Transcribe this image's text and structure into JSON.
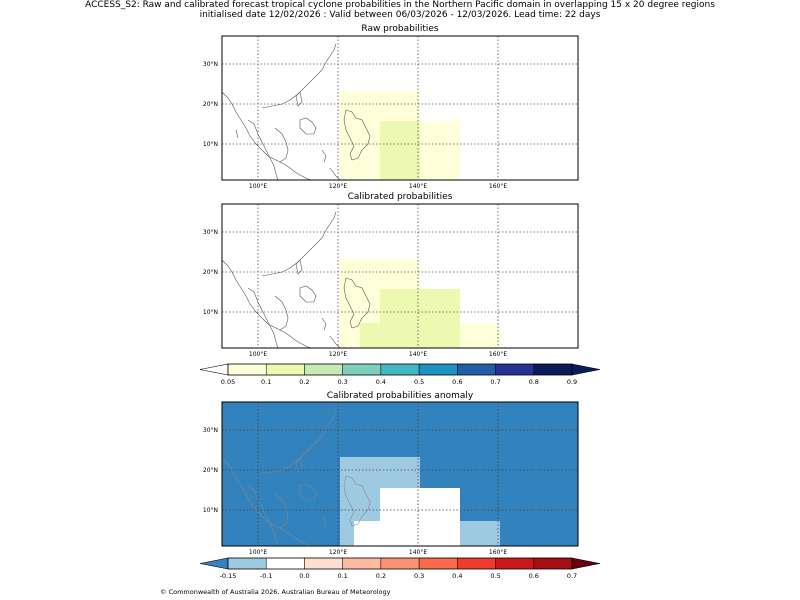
{
  "header": {
    "line1": "ACCESS_S2: Raw and calibrated forecast tropical cyclone probabilities in the Northern Pacific domain in overlapping 15 x 20 degree regions",
    "line2": "initialised date 12/02/2026 :  Valid between 06/03/2026 - 12/03/2026. Lead time: 22 days"
  },
  "axes": {
    "lon_ticks": [
      "100°E",
      "120°E",
      "140°E",
      "160°E"
    ],
    "lat_ticks": [
      "30°N",
      "20°N",
      "10°N"
    ]
  },
  "panels": {
    "raw": {
      "title": "Raw probabilities"
    },
    "calibrated": {
      "title": "Calibrated probabilities"
    },
    "anomaly": {
      "title": "Calibrated probabilities anomaly"
    }
  },
  "colorbar_prob": {
    "ticks": [
      "0.05",
      "0.1",
      "0.2",
      "0.3",
      "0.4",
      "0.5",
      "0.6",
      "0.7",
      "0.8",
      "0.9"
    ],
    "colors": [
      "#ffffd9",
      "#edf8b1",
      "#c7e9b4",
      "#7fcdbb",
      "#41b6c4",
      "#1d91c0",
      "#225ea8",
      "#253494",
      "#081d58"
    ],
    "under_color": "#ffffff",
    "over_color": "#081d58"
  },
  "colorbar_anom": {
    "ticks": [
      "-0.15",
      "-0.1",
      "0.0",
      "0.1",
      "0.2",
      "0.3",
      "0.4",
      "0.5",
      "0.6",
      "0.7"
    ],
    "colors": [
      "#9ecae1",
      "#ffffff",
      "#fee0d2",
      "#fcbba1",
      "#fc9272",
      "#fb6a4a",
      "#ef3b2c",
      "#cb181d",
      "#a50f15"
    ],
    "under_color": "#3182bd",
    "over_color": "#67000d"
  },
  "map_colors": {
    "anomaly_background": "#3182bd",
    "anomaly_light": "#9ecae1",
    "anomaly_white": "#ffffff",
    "prob_low": "#ffffd9",
    "prob_mid": "#edf8b1"
  },
  "footer": "© Commonwealth of Australia 2026, Australian Bureau of Meteorology"
}
